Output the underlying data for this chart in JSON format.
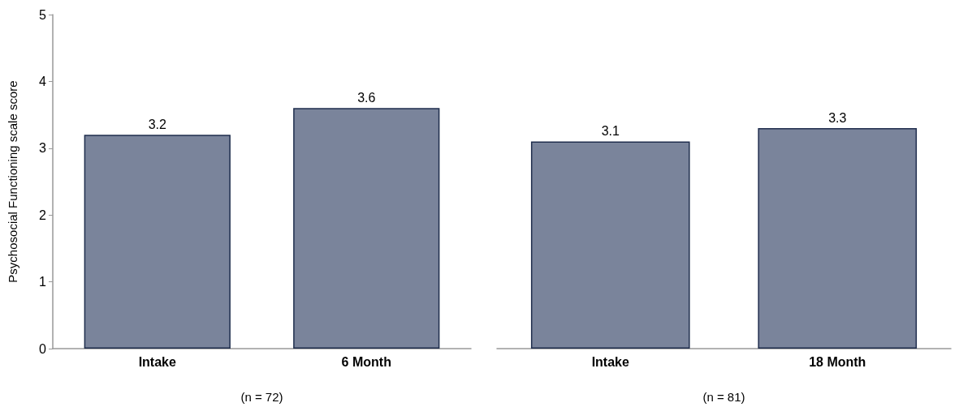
{
  "chart_data": [
    {
      "type": "bar",
      "categories": [
        "Intake",
        "6 Month"
      ],
      "values": [
        3.2,
        3.6
      ],
      "color": "#7a849b",
      "ylabel": "Psychosocial Functioning scale score",
      "xlabel": "(n = 72)",
      "ylim": [
        0,
        5
      ],
      "yticks": [
        0,
        1,
        2,
        3,
        4,
        5
      ],
      "data_labels": true,
      "grid": false
    },
    {
      "type": "bar",
      "categories": [
        "Intake",
        "18 Month"
      ],
      "values": [
        3.1,
        3.3
      ],
      "color": "#7a849b",
      "xlabel": "(n = 81)",
      "ylim": [
        0,
        5
      ],
      "yticks": [
        0,
        1,
        2,
        3,
        4,
        5
      ],
      "data_labels": true,
      "grid": false,
      "tick_labels": "x"
    }
  ]
}
